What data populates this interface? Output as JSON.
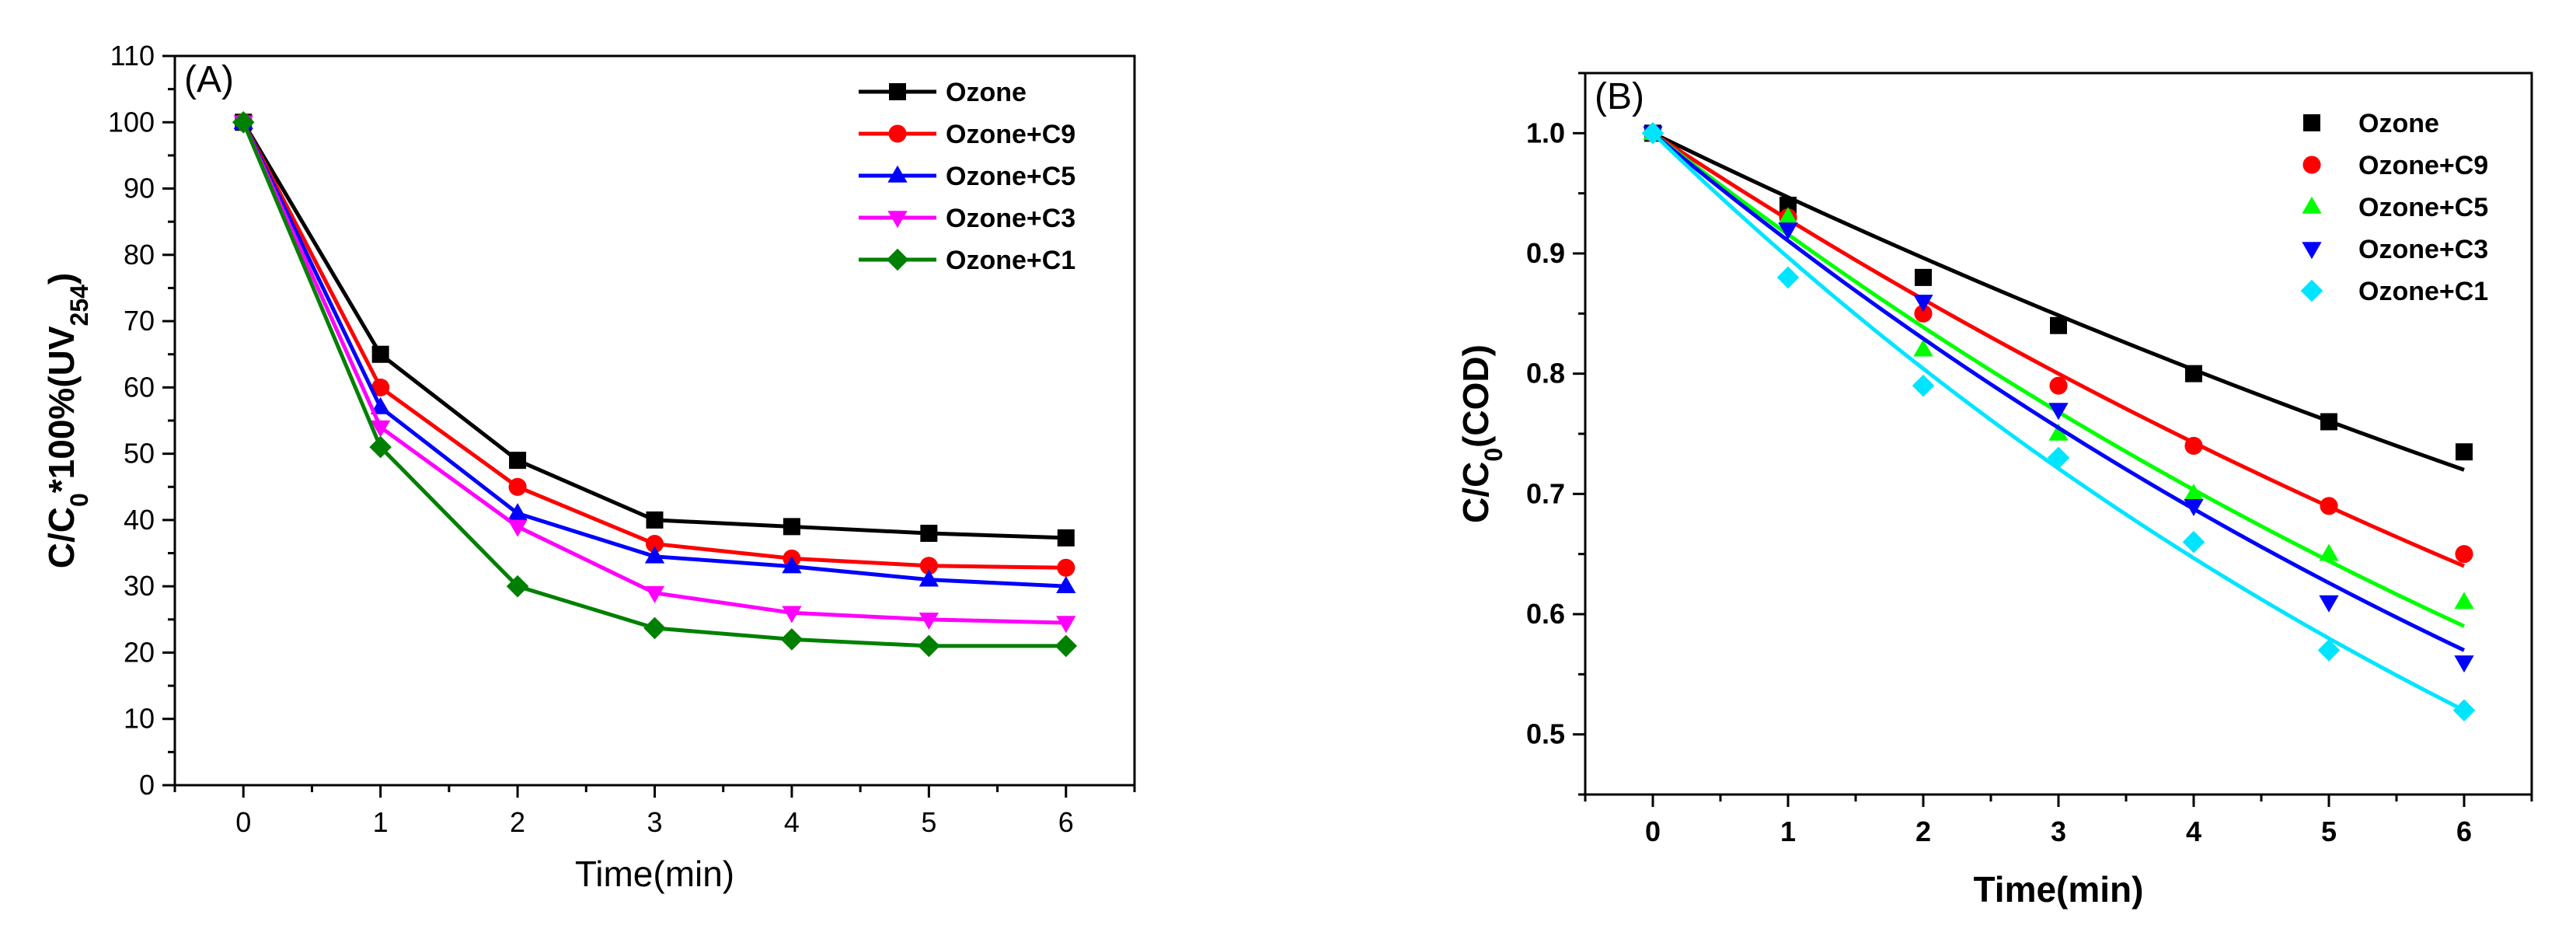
{
  "chart_data": [
    {
      "panel": "(A)",
      "type": "line",
      "xlabel": "Time(min)",
      "ylabel_parts": [
        "C/C",
        "0",
        "*100%(UV",
        "254",
        ")"
      ],
      "xlim": [
        -0.5,
        6.5
      ],
      "ylim": [
        0,
        110
      ],
      "xticks": [
        0,
        1,
        2,
        3,
        4,
        5,
        6
      ],
      "yticks": [
        0,
        10,
        20,
        30,
        40,
        50,
        60,
        70,
        80,
        90,
        100,
        110
      ],
      "grid": false,
      "legend_position": "top-right",
      "x": [
        0,
        1,
        2,
        3,
        4,
        5,
        6
      ],
      "series": [
        {
          "name": "Ozone",
          "color": "#000000",
          "marker": "square",
          "values": [
            100,
            65,
            49,
            40,
            39,
            38,
            37.3
          ]
        },
        {
          "name": "Ozone+C9",
          "color": "#ff0000",
          "marker": "circle",
          "values": [
            100,
            60,
            45,
            36.4,
            34.2,
            33.1,
            32.8
          ]
        },
        {
          "name": "Ozone+C5",
          "color": "#0000ff",
          "marker": "triangle-up",
          "values": [
            100,
            57,
            41,
            34.5,
            33,
            31,
            30
          ]
        },
        {
          "name": "Ozone+C3",
          "color": "#ff00ff",
          "marker": "triangle-down",
          "values": [
            100,
            54,
            39,
            29,
            26,
            25,
            24.5
          ]
        },
        {
          "name": "Ozone+C1",
          "color": "#008000",
          "marker": "diamond",
          "values": [
            100,
            51,
            30,
            23.7,
            22,
            21,
            21
          ]
        }
      ]
    },
    {
      "panel": "(B)",
      "type": "scatter",
      "xlabel": "Time(min)",
      "ylabel_parts": [
        "C/C",
        "0",
        "(COD)"
      ],
      "xlim": [
        -0.5,
        6.5
      ],
      "ylim": [
        0.45,
        1.05
      ],
      "xticks": [
        0,
        1,
        2,
        3,
        4,
        5,
        6
      ],
      "yticks": [
        0.5,
        0.6,
        0.7,
        0.8,
        0.9,
        1.0
      ],
      "ytick_labels": [
        "0.5",
        "0.6",
        "0.7",
        "0.8",
        "0.9",
        "1.0"
      ],
      "grid": false,
      "legend_position": "top-right",
      "x": [
        0,
        1,
        2,
        3,
        4,
        5,
        6
      ],
      "fit": "exponential",
      "series": [
        {
          "name": "Ozone",
          "color": "#000000",
          "marker": "square",
          "values": [
            1.0,
            0.94,
            0.88,
            0.84,
            0.8,
            0.76,
            0.735
          ],
          "fit_end": 0.72
        },
        {
          "name": "Ozone+C9",
          "color": "#ff0000",
          "marker": "circle",
          "values": [
            1.0,
            0.93,
            0.85,
            0.79,
            0.74,
            0.69,
            0.65
          ],
          "fit_end": 0.64
        },
        {
          "name": "Ozone+C5",
          "color": "#00ff00",
          "marker": "triangle-up",
          "values": [
            1.0,
            0.93,
            0.82,
            0.75,
            0.7,
            0.65,
            0.61
          ],
          "fit_end": 0.59
        },
        {
          "name": "Ozone+C3",
          "color": "#0000ff",
          "marker": "triangle-down",
          "values": [
            1.0,
            0.92,
            0.86,
            0.77,
            0.69,
            0.61,
            0.56
          ],
          "fit_end": 0.57
        },
        {
          "name": "Ozone+C1",
          "color": "#00e5ff",
          "marker": "diamond",
          "values": [
            1.0,
            0.88,
            0.79,
            0.73,
            0.66,
            0.57,
            0.52
          ],
          "fit_end": 0.52
        }
      ]
    }
  ]
}
